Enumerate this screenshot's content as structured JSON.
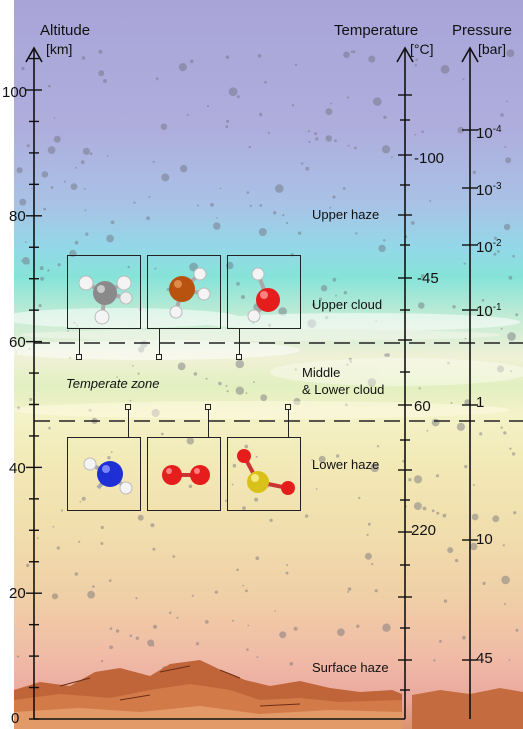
{
  "headers": {
    "altitude": "Altitude",
    "altitude_unit": "[km]",
    "temperature": "Temperature",
    "temperature_unit": "[°C]",
    "pressure": "Pressure",
    "pressure_unit": "[bar]"
  },
  "altitude_ticks": [
    "100",
    "80",
    "60",
    "40",
    "20",
    "0"
  ],
  "temperature_ticks": [
    "-100",
    "-45",
    "60",
    "220"
  ],
  "pressure_ticks": {
    "p1": {
      "base": "10",
      "exp": "-4"
    },
    "p2": {
      "base": "10",
      "exp": "-3"
    },
    "p3": {
      "base": "10",
      "exp": "-2"
    },
    "p4": {
      "base": "10",
      "exp": "-1"
    },
    "p5": "1",
    "p6": "10",
    "p7": "45"
  },
  "zones": {
    "upper_haze": "Upper haze",
    "upper_cloud": "Upper cloud",
    "middle_lower_cloud_1": "Middle",
    "middle_lower_cloud_2": "& Lower cloud",
    "temperate_zone": "Temperate zone",
    "lower_haze": "Lower haze",
    "surface_haze": "Surface haze"
  },
  "molecules_upper": [
    "methane",
    "phosphine",
    "water"
  ],
  "molecules_lower": [
    "ammonia",
    "oxygen",
    "sulfur-dioxide"
  ],
  "colors": {
    "carbon": "#8a8a8a",
    "phosphorus": "#b8530f",
    "oxygen": "#e51d1d",
    "nitrogen": "#1f2fd6",
    "sulfur": "#d8c21a",
    "hydrogen": "#f4f4f4",
    "axis": "#111111"
  }
}
